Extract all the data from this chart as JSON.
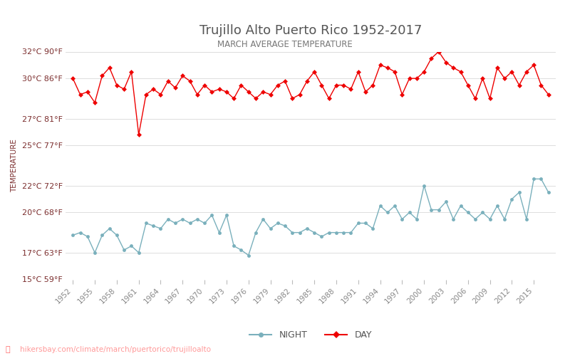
{
  "title": "Trujillo Alto Puerto Rico 1952-2017",
  "subtitle": "MARCH AVERAGE TEMPERATURE",
  "ylabel": "TEMPERATURE",
  "watermark": "hikersbay.com/climate/march/puertorico/trujilloalto",
  "years": [
    1952,
    1953,
    1954,
    1955,
    1956,
    1957,
    1958,
    1959,
    1960,
    1961,
    1962,
    1963,
    1964,
    1965,
    1966,
    1967,
    1968,
    1969,
    1970,
    1971,
    1972,
    1973,
    1974,
    1975,
    1976,
    1977,
    1978,
    1979,
    1980,
    1981,
    1982,
    1983,
    1984,
    1985,
    1986,
    1987,
    1988,
    1989,
    1990,
    1991,
    1992,
    1993,
    1994,
    1995,
    1996,
    1997,
    1998,
    1999,
    2000,
    2001,
    2002,
    2003,
    2004,
    2005,
    2006,
    2007,
    2008,
    2009,
    2010,
    2011,
    2012,
    2013,
    2014,
    2015,
    2016,
    2017
  ],
  "day": [
    30.0,
    28.8,
    29.0,
    28.2,
    30.2,
    30.8,
    29.5,
    29.2,
    30.5,
    25.8,
    28.8,
    29.2,
    28.8,
    29.8,
    29.3,
    30.2,
    29.8,
    28.8,
    29.5,
    29.0,
    29.2,
    29.0,
    28.5,
    29.5,
    29.0,
    28.5,
    29.0,
    28.8,
    29.5,
    29.8,
    28.5,
    28.8,
    29.8,
    30.5,
    29.5,
    28.5,
    29.5,
    29.5,
    29.2,
    30.5,
    29.0,
    29.5,
    31.0,
    30.8,
    30.5,
    28.8,
    30.0,
    30.0,
    30.5,
    31.5,
    32.0,
    31.2,
    30.8,
    30.5,
    29.5,
    28.5,
    30.0,
    28.5,
    30.8,
    30.0,
    30.5,
    29.5,
    30.5,
    31.0,
    29.5,
    28.8
  ],
  "night": [
    18.3,
    18.5,
    18.2,
    17.0,
    18.3,
    18.8,
    18.3,
    17.2,
    17.5,
    17.0,
    19.2,
    19.0,
    18.8,
    19.5,
    19.2,
    19.5,
    19.2,
    19.5,
    19.2,
    19.8,
    18.5,
    19.8,
    17.5,
    17.2,
    16.8,
    18.5,
    19.5,
    18.8,
    19.2,
    19.0,
    18.5,
    18.5,
    18.8,
    18.5,
    18.2,
    18.5,
    18.5,
    18.5,
    18.5,
    19.2,
    19.2,
    18.8,
    20.5,
    20.0,
    20.5,
    19.5,
    20.0,
    19.5,
    22.0,
    20.2,
    20.2,
    20.8,
    19.5,
    20.5,
    20.0,
    19.5,
    20.0,
    19.5,
    20.5,
    19.5,
    21.0,
    21.5,
    19.5,
    22.5,
    22.5,
    21.5
  ],
  "day_color": "#ee0000",
  "night_color": "#7ab0bc",
  "title_color": "#555555",
  "subtitle_color": "#777777",
  "ylabel_color": "#7b2d2d",
  "ytick_color": "#7b2d2d",
  "xtick_color": "#888888",
  "grid_color": "#dddddd",
  "bg_color": "#ffffff",
  "ylim": [
    15,
    32
  ],
  "yticks_c": [
    15,
    17,
    20,
    22,
    25,
    27,
    30,
    32
  ],
  "ytick_labels": [
    "15°C 59°F",
    "17°C 63°F",
    "20°C 68°F",
    "22°C 72°F",
    "25°C 77°F",
    "27°C 81°F",
    "30°C 86°F",
    "32°C 90°F"
  ],
  "xtick_years": [
    1952,
    1955,
    1958,
    1961,
    1964,
    1967,
    1970,
    1973,
    1976,
    1979,
    1982,
    1985,
    1988,
    1991,
    1994,
    1997,
    2000,
    2003,
    2006,
    2009,
    2012,
    2015
  ],
  "legend_night": "NIGHT",
  "legend_day": "DAY",
  "marker_size": 3.5,
  "line_width": 1.0
}
